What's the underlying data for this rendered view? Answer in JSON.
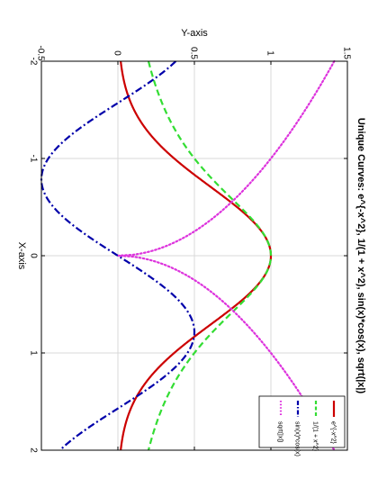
{
  "chart_data": {
    "type": "line",
    "title": "Unique Curves: e^{-x^2}, 1/(1 + x^2), sin(x)*cos(x), sqrt(|x|)",
    "xlabel": "X-axis",
    "ylabel": "Y-axis",
    "xlim": [
      -2,
      2
    ],
    "ylim": [
      -0.5,
      1.5
    ],
    "xticks": [
      "-2",
      "-1",
      "0",
      "1",
      "2"
    ],
    "yticks": [
      "-0.5",
      "0",
      "0.5",
      "1",
      "1.5"
    ],
    "grid": true,
    "legend_position": "bottom-right",
    "orientation": "rotated 90° clockwise",
    "series": [
      {
        "name": "e^{-x^2}",
        "function": "exp(-x^2)",
        "color": "#cc0000",
        "style": "solid"
      },
      {
        "name": "1/(1 + x^2)",
        "function": "1/(1+x^2)",
        "color": "#33dd33",
        "style": "dashed"
      },
      {
        "name": "sin(x)*cos(x)",
        "function": "sin(x)*cos(x)",
        "color": "#0000aa",
        "style": "dashdot"
      },
      {
        "name": "sqrt(|x|)",
        "function": "sqrt(|x|)",
        "color": "#dd33dd",
        "style": "dotted"
      }
    ]
  }
}
